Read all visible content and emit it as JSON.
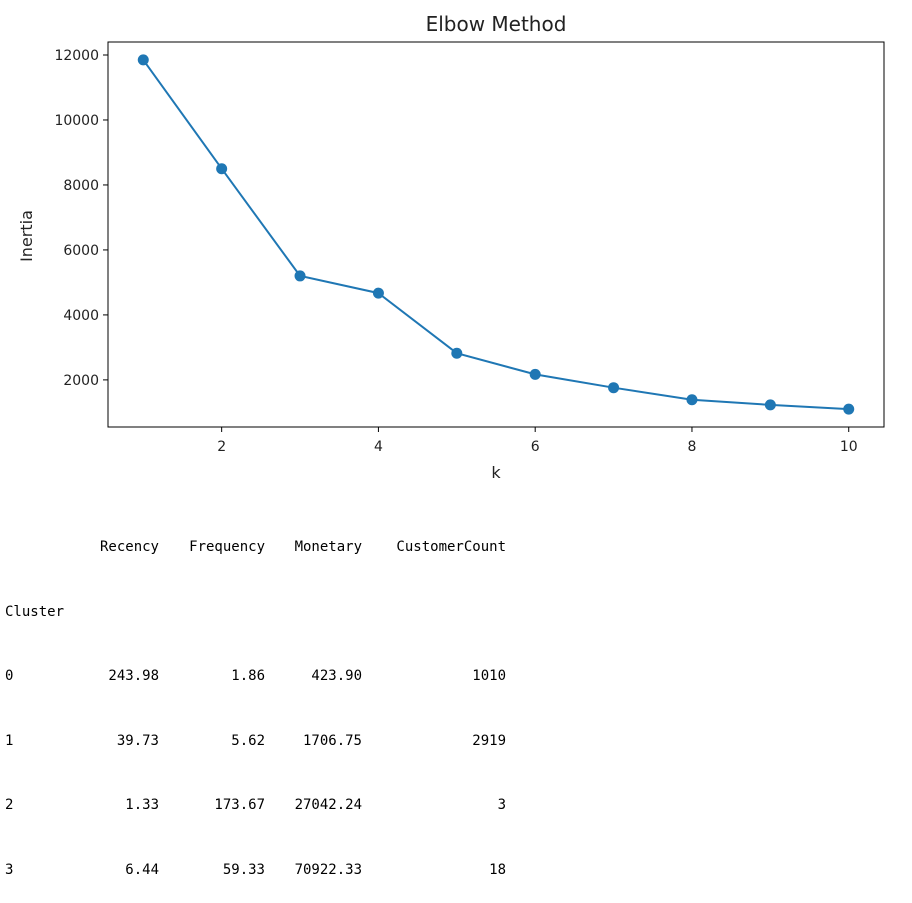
{
  "chart_data": {
    "type": "line",
    "title": "Elbow Method",
    "xlabel": "k",
    "ylabel": "Inertia",
    "x": [
      1,
      2,
      3,
      4,
      5,
      6,
      7,
      8,
      9,
      10
    ],
    "series": [
      {
        "values": [
          11850,
          8500,
          5200,
          4670,
          2820,
          2170,
          1760,
          1390,
          1230,
          1100
        ],
        "color": "#1f77b4",
        "marker": "circle"
      }
    ],
    "xlim": [
      0.55,
      10.45
    ],
    "ylim": [
      550,
      12400
    ],
    "xticks": [
      2,
      4,
      6,
      8,
      10
    ],
    "yticks": [
      2000,
      4000,
      6000,
      8000,
      10000,
      12000
    ],
    "grid": false,
    "legend": "none"
  },
  "dataframe": {
    "columns": [
      "Recency",
      "Frequency",
      "Monetary",
      "CustomerCount"
    ],
    "index_name": "Cluster",
    "rows": [
      {
        "index": "0",
        "values": [
          "243.98",
          "1.86",
          "423.90",
          "1010"
        ]
      },
      {
        "index": "1",
        "values": [
          "39.73",
          "5.62",
          "1706.75",
          "2919"
        ]
      },
      {
        "index": "2",
        "values": [
          "1.33",
          "173.67",
          "27042.24",
          "3"
        ]
      },
      {
        "index": "3",
        "values": [
          "6.44",
          "59.33",
          "70922.33",
          "18"
        ]
      }
    ]
  }
}
